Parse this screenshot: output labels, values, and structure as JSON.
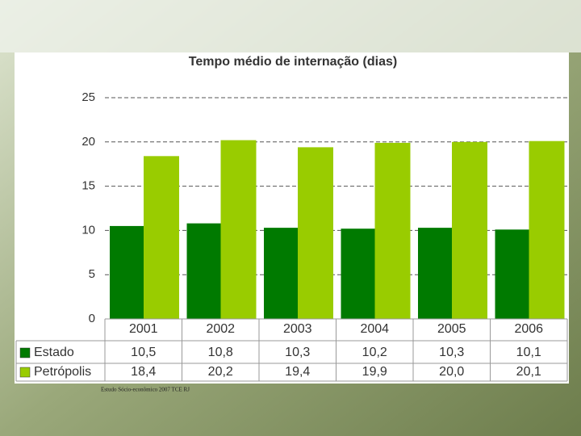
{
  "chart_data": {
    "type": "bar",
    "title": "Tempo médio de internação (dias)",
    "categories": [
      "2001",
      "2002",
      "2003",
      "2004",
      "2005",
      "2006"
    ],
    "series": [
      {
        "name": "Estado",
        "color": "#007a00",
        "values": [
          10.5,
          10.8,
          10.3,
          10.2,
          10.3,
          10.1
        ],
        "value_labels": [
          "10,5",
          "10,8",
          "10,3",
          "10,2",
          "10,3",
          "10,1"
        ]
      },
      {
        "name": "Petrópolis",
        "color": "#99cc00",
        "values": [
          18.4,
          20.2,
          19.4,
          19.9,
          20.0,
          20.1
        ],
        "value_labels": [
          "18,4",
          "20,2",
          "19,4",
          "19,9",
          "20,0",
          "20,1"
        ]
      }
    ],
    "ylim": [
      0,
      25
    ],
    "yticks": [
      0,
      5,
      10,
      15,
      20,
      25
    ],
    "grid": true,
    "footnote": "Estudo Sócio-econômico 2007 TCE RJ"
  }
}
